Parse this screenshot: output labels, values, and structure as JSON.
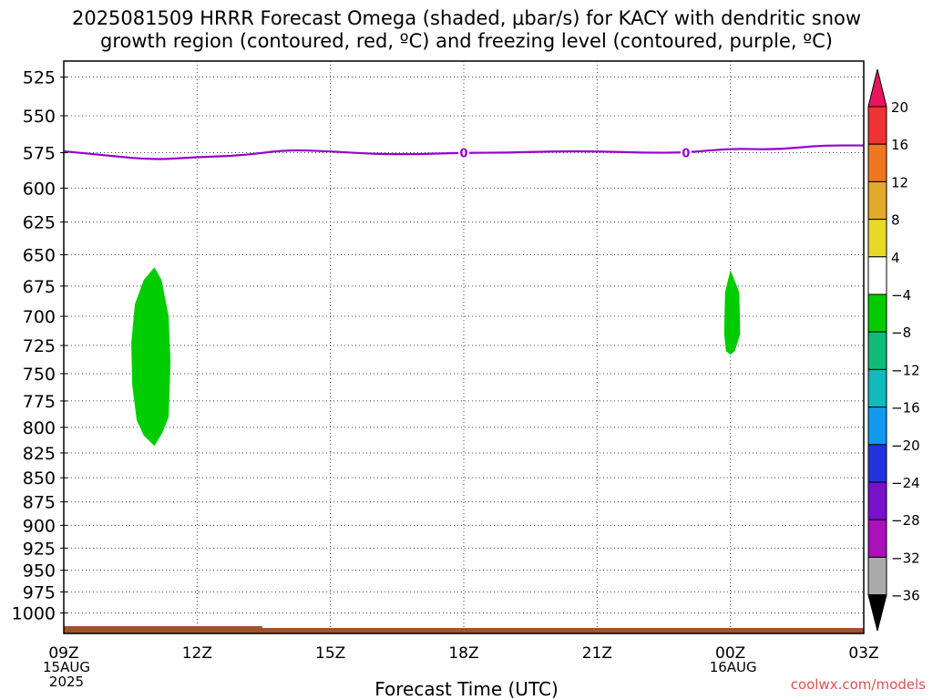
{
  "title": {
    "line1": "2025081509 HRRR Forecast Omega (shaded, μbar/s) for KACY with dendritic snow",
    "line2": "growth region (contoured, red, ºC) and freezing level (contoured, purple, ºC)"
  },
  "credit": "coolwx.com/models",
  "chart_data": {
    "type": "time-height",
    "xlabel": "Forecast Time (UTC)",
    "x_range_hours": [
      0,
      18
    ],
    "x_ticks": [
      {
        "h": 0,
        "label": "09Z",
        "sub": [
          "15AUG",
          "2025"
        ]
      },
      {
        "h": 3,
        "label": "12Z",
        "sub": []
      },
      {
        "h": 6,
        "label": "15Z",
        "sub": []
      },
      {
        "h": 9,
        "label": "18Z",
        "sub": []
      },
      {
        "h": 12,
        "label": "21Z",
        "sub": []
      },
      {
        "h": 15,
        "label": "00Z",
        "sub": [
          "16AUG"
        ]
      },
      {
        "h": 18,
        "label": "03Z",
        "sub": []
      }
    ],
    "y_scale": "log-pressure",
    "y_range_mb": [
      1025,
      515
    ],
    "y_ticks": [
      525,
      550,
      575,
      600,
      625,
      650,
      675,
      700,
      725,
      750,
      775,
      800,
      825,
      850,
      875,
      900,
      925,
      950,
      975,
      1000
    ],
    "freezing_level": {
      "color": "#9900cc",
      "label": "0",
      "label_hours": [
        9,
        14
      ],
      "points": [
        [
          0,
          574
        ],
        [
          1,
          577
        ],
        [
          2,
          580
        ],
        [
          3,
          578
        ],
        [
          4,
          577
        ],
        [
          5,
          573
        ],
        [
          6,
          574
        ],
        [
          7,
          576
        ],
        [
          8,
          576
        ],
        [
          9,
          575
        ],
        [
          10,
          575
        ],
        [
          11,
          574
        ],
        [
          12,
          574
        ],
        [
          13,
          575
        ],
        [
          14,
          575
        ],
        [
          15,
          572
        ],
        [
          16,
          573
        ],
        [
          17,
          570
        ],
        [
          18,
          570
        ]
      ]
    },
    "omega_regions": [
      {
        "bin": "-8 to -4",
        "color": "#00cc00",
        "outline": [
          [
            2.04,
            660
          ],
          [
            2.2,
            670
          ],
          [
            2.36,
            700
          ],
          [
            2.4,
            740
          ],
          [
            2.36,
            790
          ],
          [
            2.22,
            805
          ],
          [
            2.04,
            818
          ],
          [
            1.8,
            808
          ],
          [
            1.64,
            793
          ],
          [
            1.54,
            760
          ],
          [
            1.52,
            723
          ],
          [
            1.6,
            690
          ],
          [
            1.8,
            670
          ]
        ]
      },
      {
        "bin": "-8 to -4",
        "color": "#00cc00",
        "outline": [
          [
            15.0,
            662
          ],
          [
            15.2,
            680
          ],
          [
            15.22,
            715
          ],
          [
            15.1,
            730
          ],
          [
            15.0,
            733
          ],
          [
            14.9,
            730
          ],
          [
            14.86,
            715
          ],
          [
            14.88,
            680
          ]
        ]
      }
    ],
    "surface_band": {
      "color": "#a0522d",
      "note": "terrain"
    },
    "colorbar": {
      "labels": [
        "20",
        "16",
        "12",
        "8",
        "4",
        "−4",
        "−8",
        "−12",
        "−16",
        "−20",
        "−24",
        "−28",
        "−32",
        "−36"
      ],
      "colors": [
        "#e8175d",
        "#ee3333",
        "#ee7722",
        "#e3a92a",
        "#e8d82a",
        "#ffffff",
        "#00cc00",
        "#11bb77",
        "#11bbbb",
        "#1199ee",
        "#2233dd",
        "#7711cc",
        "#aa11bb",
        "#aaaaaa",
        "#000000"
      ]
    }
  }
}
